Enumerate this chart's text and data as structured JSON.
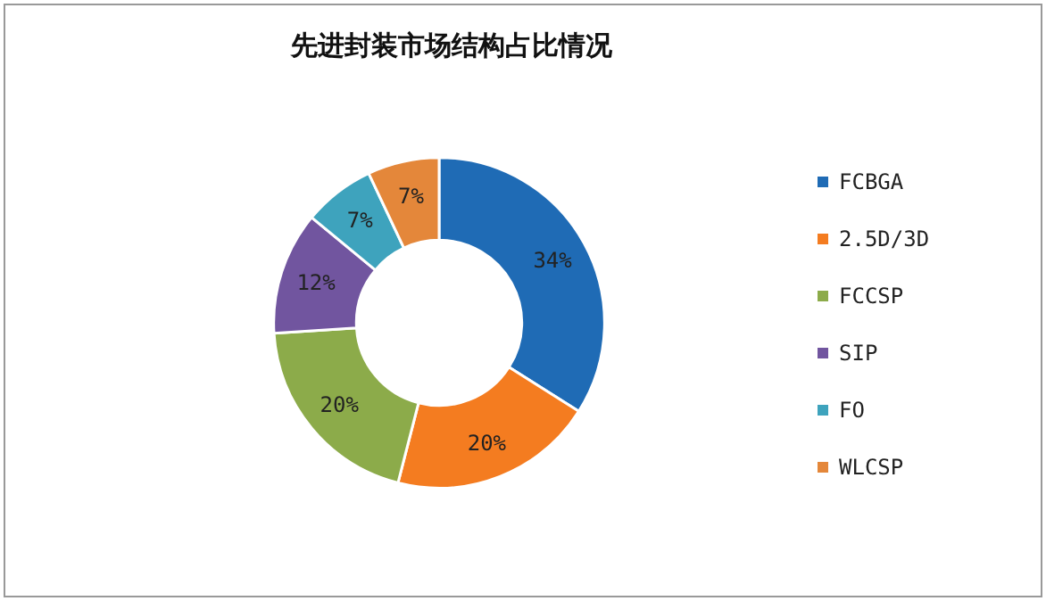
{
  "chart_data": {
    "type": "donut",
    "title": "先进封装市场结构占比情况",
    "categories": [
      "FCBGA",
      "2.5D/3D",
      "FCCSP",
      "SIP",
      "FO",
      "WLCSP"
    ],
    "values": [
      34,
      20,
      20,
      12,
      7,
      7
    ],
    "colors": [
      "#1f6bb5",
      "#f47c20",
      "#8cab4a",
      "#71559f",
      "#3ea3bd",
      "#e4873a"
    ],
    "value_labels": [
      "34%",
      "20%",
      "20%",
      "12%",
      "7%",
      "7%"
    ],
    "legend": "right"
  }
}
